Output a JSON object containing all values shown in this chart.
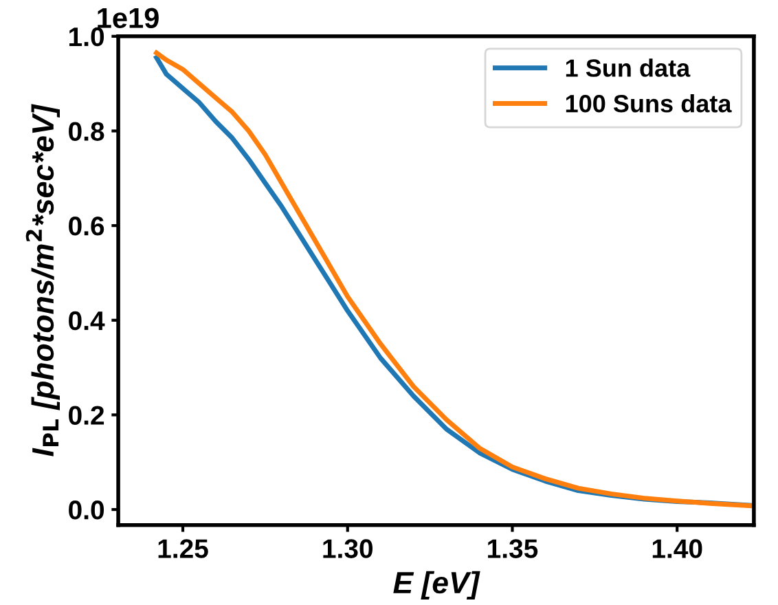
{
  "chart_data": {
    "type": "line",
    "xlabel": "E [eV]",
    "ylabel": "I$_{PL}$ [photons/m$^{2}$*sec*eV]",
    "annotations": [
      "1e19"
    ],
    "x": [
      1.242,
      1.245,
      1.25,
      1.255,
      1.26,
      1.265,
      1.27,
      1.275,
      1.28,
      1.285,
      1.29,
      1.295,
      1.3,
      1.31,
      1.32,
      1.33,
      1.34,
      1.35,
      1.36,
      1.37,
      1.38,
      1.39,
      1.4,
      1.41,
      1.422
    ],
    "series": [
      {
        "name": "1 Sun data",
        "color": "#1f77b4",
        "values": [
          0.955,
          0.92,
          0.89,
          0.86,
          0.82,
          0.785,
          0.74,
          0.69,
          0.64,
          0.585,
          0.53,
          0.475,
          0.42,
          0.32,
          0.24,
          0.17,
          0.12,
          0.085,
          0.06,
          0.04,
          0.03,
          0.022,
          0.017,
          0.014,
          0.009
        ]
      },
      {
        "name": "100 Suns data",
        "color": "#ff7f0e",
        "values": [
          0.965,
          0.95,
          0.93,
          0.9,
          0.87,
          0.84,
          0.8,
          0.75,
          0.69,
          0.63,
          0.57,
          0.51,
          0.45,
          0.35,
          0.26,
          0.19,
          0.13,
          0.09,
          0.065,
          0.045,
          0.033,
          0.024,
          0.018,
          0.013,
          0.008
        ]
      }
    ],
    "xlim": [
      1.2304,
      1.4233
    ],
    "xticks": [
      {
        "value": 1.25,
        "label": "1.25"
      },
      {
        "value": 1.3,
        "label": "1.30"
      },
      {
        "value": 1.35,
        "label": "1.35"
      },
      {
        "value": 1.4,
        "label": "1.40"
      }
    ],
    "ylim": [
      -0.033,
      1.0
    ],
    "yticks": [
      {
        "value": 0.0,
        "label": "0.0"
      },
      {
        "value": 0.2,
        "label": "0.2"
      },
      {
        "value": 0.4,
        "label": "0.4"
      },
      {
        "value": 0.6,
        "label": "0.6"
      },
      {
        "value": 0.8,
        "label": "0.8"
      },
      {
        "value": 1.0,
        "label": "1.0"
      }
    ],
    "grid": false,
    "legend": "top right",
    "marker": "none",
    "line_style": "solid"
  }
}
